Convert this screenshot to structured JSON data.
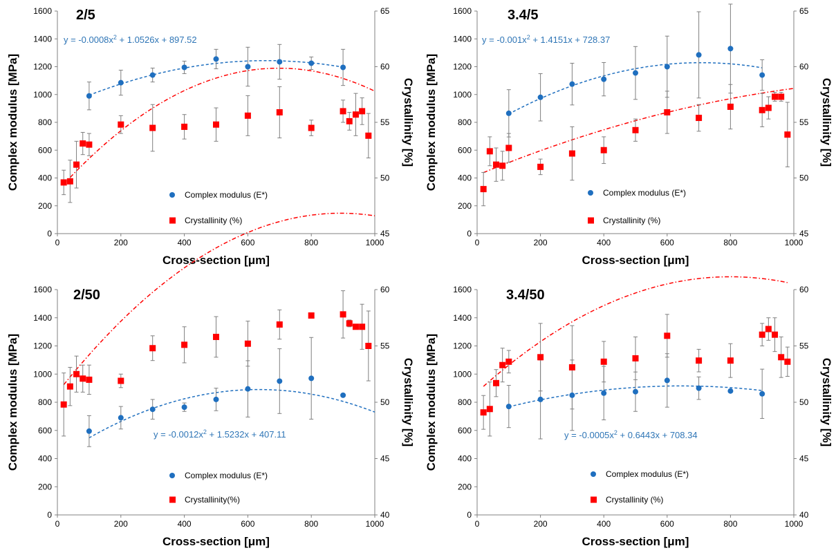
{
  "chart_data": [
    {
      "type": "scatter",
      "title": "2/5",
      "xlabel": "Cross-section [μm]",
      "ylabel": "Complex modulus [MPa]",
      "y2label": "Crystallinity [%]",
      "xlim": [
        0,
        1000
      ],
      "ylim": [
        0,
        1600
      ],
      "y2lim": [
        45,
        65
      ],
      "xticks": [
        0,
        200,
        400,
        600,
        800,
        1000
      ],
      "yticks": [
        0,
        200,
        400,
        600,
        800,
        1000,
        1200,
        1400,
        1600
      ],
      "y2ticks": [
        45,
        50,
        55,
        60,
        65
      ],
      "equation": {
        "pre": "y = -0.0008x",
        "sup": "2",
        "post": " + 1.0526x + 897.52"
      },
      "legend": {
        "modulus": "Complex modulus (E*)",
        "crystallinity": "Crystallinity (%)"
      },
      "colors": {
        "modulus": "#1f6fbf",
        "crystallinity": "#ff0000"
      },
      "modulus": {
        "x": [
          100,
          200,
          300,
          400,
          500,
          600,
          700,
          800,
          900
        ],
        "y": [
          990,
          1085,
          1140,
          1195,
          1255,
          1200,
          1235,
          1225,
          1195
        ],
        "err": [
          100,
          90,
          50,
          45,
          70,
          140,
          125,
          45,
          130
        ],
        "trend": [
          -0.0008,
          1.0526,
          897.52
        ],
        "trend_range": [
          100,
          900
        ]
      },
      "crystallinity": {
        "x": [
          20,
          40,
          60,
          80,
          100,
          200,
          300,
          400,
          500,
          600,
          700,
          800,
          900,
          920,
          940,
          960,
          980
        ],
        "y": [
          49.6,
          49.7,
          51.2,
          53.1,
          53.0,
          54.8,
          54.5,
          54.6,
          54.8,
          55.6,
          55.9,
          54.5,
          56.0,
          55.1,
          55.7,
          56.0,
          53.8
        ],
        "err": [
          1.1,
          1.9,
          2.1,
          1.0,
          1.0,
          0.8,
          2.1,
          1.1,
          1.5,
          1.8,
          2.3,
          0.7,
          1.0,
          0.8,
          1.9,
          1.2,
          2.0
        ],
        "trend": [
          -2.267e-05,
          0.03165,
          48.82
        ],
        "trend_range": [
          20,
          1000
        ]
      }
    },
    {
      "type": "scatter",
      "title": "3.4/5",
      "xlabel": "Cross-section [μm]",
      "ylabel": "Complex modulus [MPa]",
      "y2label": "Crystallinity [%]",
      "xlim": [
        0,
        1000
      ],
      "ylim": [
        0,
        1600
      ],
      "y2lim": [
        45,
        65
      ],
      "xticks": [
        0,
        200,
        400,
        600,
        800,
        1000
      ],
      "yticks": [
        0,
        200,
        400,
        600,
        800,
        1000,
        1200,
        1400,
        1600
      ],
      "y2ticks": [
        45,
        50,
        55,
        60,
        65
      ],
      "equation": {
        "pre": "y = -0.001x",
        "sup": "2",
        "post": " + 1.4151x + 728.37"
      },
      "legend": {
        "modulus": "Complex modulus (E*)",
        "crystallinity": "Crystallinity (%)"
      },
      "colors": {
        "modulus": "#1f6fbf",
        "crystallinity": "#ff0000"
      },
      "modulus": {
        "x": [
          100,
          200,
          300,
          400,
          500,
          600,
          700,
          800,
          900
        ],
        "y": [
          865,
          980,
          1075,
          1110,
          1155,
          1200,
          1285,
          1330,
          1140
        ],
        "err": [
          170,
          170,
          150,
          120,
          190,
          220,
          310,
          320,
          110
        ],
        "trend": [
          -0.001,
          1.4151,
          728.37
        ],
        "trend_range": [
          100,
          900
        ]
      },
      "crystallinity": {
        "x": [
          20,
          40,
          60,
          80,
          100,
          200,
          300,
          400,
          500,
          600,
          700,
          800,
          900,
          920,
          940,
          960,
          980
        ],
        "y": [
          49.0,
          52.4,
          51.2,
          51.1,
          52.7,
          51.0,
          52.2,
          52.5,
          54.3,
          55.9,
          55.4,
          56.4,
          56.1,
          56.3,
          57.3,
          57.3,
          53.9
        ],
        "err": [
          1.5,
          1.3,
          1.5,
          1.3,
          1.3,
          0.7,
          2.4,
          1.2,
          1.0,
          1.9,
          1.2,
          2.0,
          1.5,
          1.0,
          0.4,
          0.4,
          2.9
        ],
        "trend": [
          -4e-06,
          0.0118,
          50.25
        ],
        "trend_range": [
          20,
          1000
        ]
      }
    },
    {
      "type": "scatter",
      "title": "2/50",
      "xlabel": "Cross-section [μm]",
      "ylabel": "Complex modulus [MPa]",
      "y2label": "Crystallinity [%]",
      "xlim": [
        0,
        1000
      ],
      "ylim": [
        0,
        1600
      ],
      "y2lim": [
        40,
        60
      ],
      "xticks": [
        0,
        200,
        400,
        600,
        800,
        1000
      ],
      "yticks": [
        0,
        200,
        400,
        600,
        800,
        1000,
        1200,
        1400,
        1600
      ],
      "y2ticks": [
        40,
        45,
        50,
        55,
        60
      ],
      "equation": {
        "pre": "y = -0.0012x",
        "sup": "2",
        "post": " + 1.5232x + 407.11"
      },
      "legend": {
        "modulus": "Complex modulus (E*)",
        "crystallinity": "Crystallinity(%)"
      },
      "colors": {
        "modulus": "#1f6fbf",
        "crystallinity": "#ff0000"
      },
      "modulus": {
        "x": [
          100,
          200,
          300,
          400,
          500,
          600,
          700,
          800,
          900
        ],
        "y": [
          595,
          690,
          750,
          765,
          820,
          895,
          950,
          970,
          850
        ],
        "err": [
          110,
          80,
          70,
          30,
          80,
          200,
          230,
          290,
          10
        ],
        "trend": [
          -0.0012,
          1.5232,
          407.11
        ],
        "trend_range": [
          100,
          1000
        ]
      },
      "crystallinity": {
        "x": [
          20,
          40,
          60,
          80,
          100,
          200,
          300,
          400,
          500,
          600,
          700,
          800,
          900,
          920,
          940,
          960,
          980
        ],
        "y": [
          49.8,
          51.4,
          52.5,
          52.1,
          52.0,
          51.9,
          54.8,
          55.1,
          55.8,
          55.2,
          56.9,
          57.7,
          57.8,
          57.0,
          56.7,
          56.7,
          55.0
        ],
        "err": [
          2.8,
          1.7,
          1.6,
          1.2,
          1.3,
          0.6,
          1.1,
          1.6,
          1.8,
          2.0,
          1.3,
          0.1,
          2.1,
          0.3,
          0.2,
          2.0,
          3.1
        ],
        "trend": [
          -2e-05,
          0.0357,
          50.85
        ],
        "trend_range": [
          20,
          1000
        ]
      }
    },
    {
      "type": "scatter",
      "title": "3.4/50",
      "xlabel": "Cross-section [μm]",
      "ylabel": "Complex modulus [MPa]",
      "y2label": "Crystallinity [%]",
      "xlim": [
        0,
        1000
      ],
      "ylim": [
        0,
        1600
      ],
      "y2lim": [
        40,
        60
      ],
      "xticks": [
        0,
        200,
        400,
        600,
        800,
        1000
      ],
      "yticks": [
        0,
        200,
        400,
        600,
        800,
        1000,
        1200,
        1400,
        1600
      ],
      "y2ticks": [
        40,
        45,
        50,
        55,
        60
      ],
      "equation": {
        "pre": "y = -0.0005x",
        "sup": "2",
        "post": " + 0.6443x + 708.34"
      },
      "legend": {
        "modulus": "Complex modulus (E*)",
        "crystallinity": "Crystallinity (%)"
      },
      "colors": {
        "modulus": "#1f6fbf",
        "crystallinity": "#ff0000"
      },
      "modulus": {
        "x": [
          100,
          200,
          300,
          400,
          500,
          600,
          700,
          800,
          900
        ],
        "y": [
          770,
          820,
          850,
          865,
          875,
          955,
          900,
          880,
          860
        ],
        "err": [
          150,
          280,
          250,
          190,
          140,
          190,
          80,
          10,
          175
        ],
        "trend": [
          -0.0005,
          0.6443,
          708.34
        ],
        "trend_range": [
          100,
          900
        ]
      },
      "crystallinity": {
        "x": [
          20,
          40,
          60,
          80,
          100,
          200,
          300,
          400,
          500,
          600,
          700,
          800,
          900,
          920,
          940,
          960,
          980
        ],
        "y": [
          49.1,
          49.4,
          51.7,
          53.3,
          53.6,
          54.0,
          53.1,
          53.6,
          53.9,
          55.9,
          53.7,
          53.7,
          56.0,
          56.5,
          56.0,
          54.0,
          53.6
        ],
        "err": [
          1.5,
          2.4,
          1.2,
          1.5,
          1.0,
          3.0,
          3.7,
          1.8,
          1.9,
          1.9,
          1.0,
          1.5,
          1.0,
          1.0,
          1.5,
          1.8,
          1.3
        ],
        "trend": [
          -1.6e-05,
          0.0256,
          50.9
        ],
        "trend_range": [
          20,
          980
        ]
      }
    }
  ]
}
